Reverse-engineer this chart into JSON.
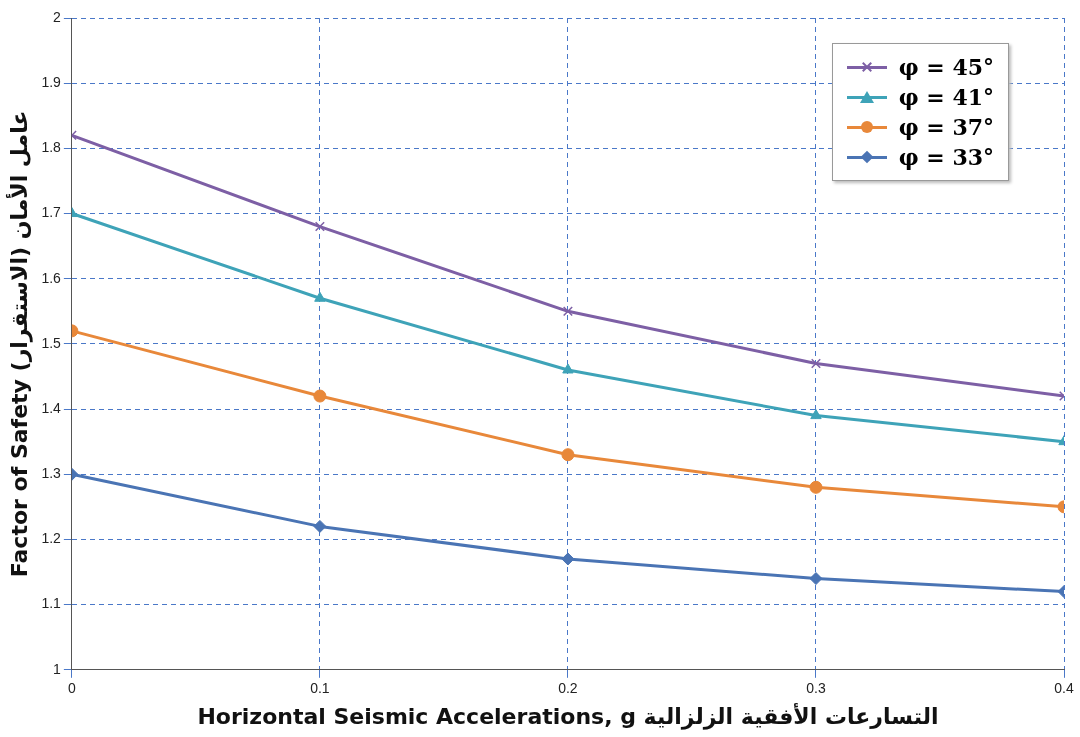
{
  "chart_data": {
    "type": "line",
    "xlabel": "Horizontal Seismic Accelerations, g التسارعات الأفقية الزلزالية",
    "ylabel": "Factor of Safety عامل الأمان (الاستقرار)",
    "x": [
      0,
      0.1,
      0.2,
      0.3,
      0.4
    ],
    "series": [
      {
        "name": "φ = 45°",
        "color": "#7d5fa5",
        "marker": "cross",
        "values": [
          1.82,
          1.68,
          1.55,
          1.47,
          1.42
        ]
      },
      {
        "name": "φ = 41°",
        "color": "#3ea3b8",
        "marker": "triangle",
        "values": [
          1.7,
          1.57,
          1.46,
          1.39,
          1.35
        ]
      },
      {
        "name": "φ = 37°",
        "color": "#e8883a",
        "marker": "circle",
        "values": [
          1.52,
          1.42,
          1.33,
          1.28,
          1.25
        ]
      },
      {
        "name": "φ = 33°",
        "color": "#4a74b4",
        "marker": "diamond",
        "values": [
          1.3,
          1.22,
          1.17,
          1.14,
          1.12
        ]
      }
    ],
    "xlim": [
      0,
      0.4
    ],
    "xticks": [
      0,
      0.1,
      0.2,
      0.3,
      0.4
    ],
    "ylim": [
      1,
      2
    ],
    "yticks": [
      1,
      1.1,
      1.2,
      1.3,
      1.4,
      1.5,
      1.6,
      1.7,
      1.8,
      1.9,
      2
    ],
    "grid": true,
    "legend": "top right",
    "line_style": "solid"
  }
}
